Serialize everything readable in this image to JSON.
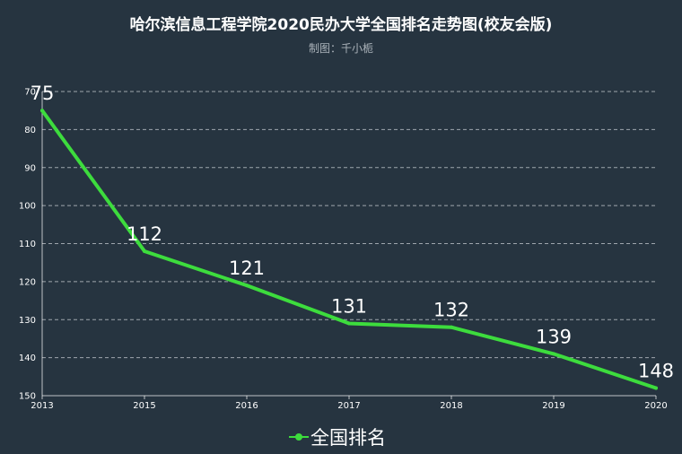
{
  "chart_data": {
    "type": "line",
    "title": "哈尔滨信息工程学院2020民办大学全国排名走势图(校友会版)",
    "subtitle": "制图：千小栀",
    "categories": [
      "2013",
      "2015",
      "2016",
      "2017",
      "2018",
      "2019",
      "2020"
    ],
    "series": [
      {
        "name": "全国排名",
        "values": [
          75,
          112,
          121,
          131,
          132,
          139,
          148
        ],
        "color": "#3ddc3d"
      }
    ],
    "ylim": [
      70,
      150
    ],
    "yticks": [
      70,
      80,
      90,
      100,
      110,
      120,
      130,
      140,
      150
    ],
    "y_inverted": true,
    "grid": true,
    "legend_position": "bottom-center"
  },
  "colors": {
    "background": "#263440",
    "line": "#3ddc3d"
  }
}
